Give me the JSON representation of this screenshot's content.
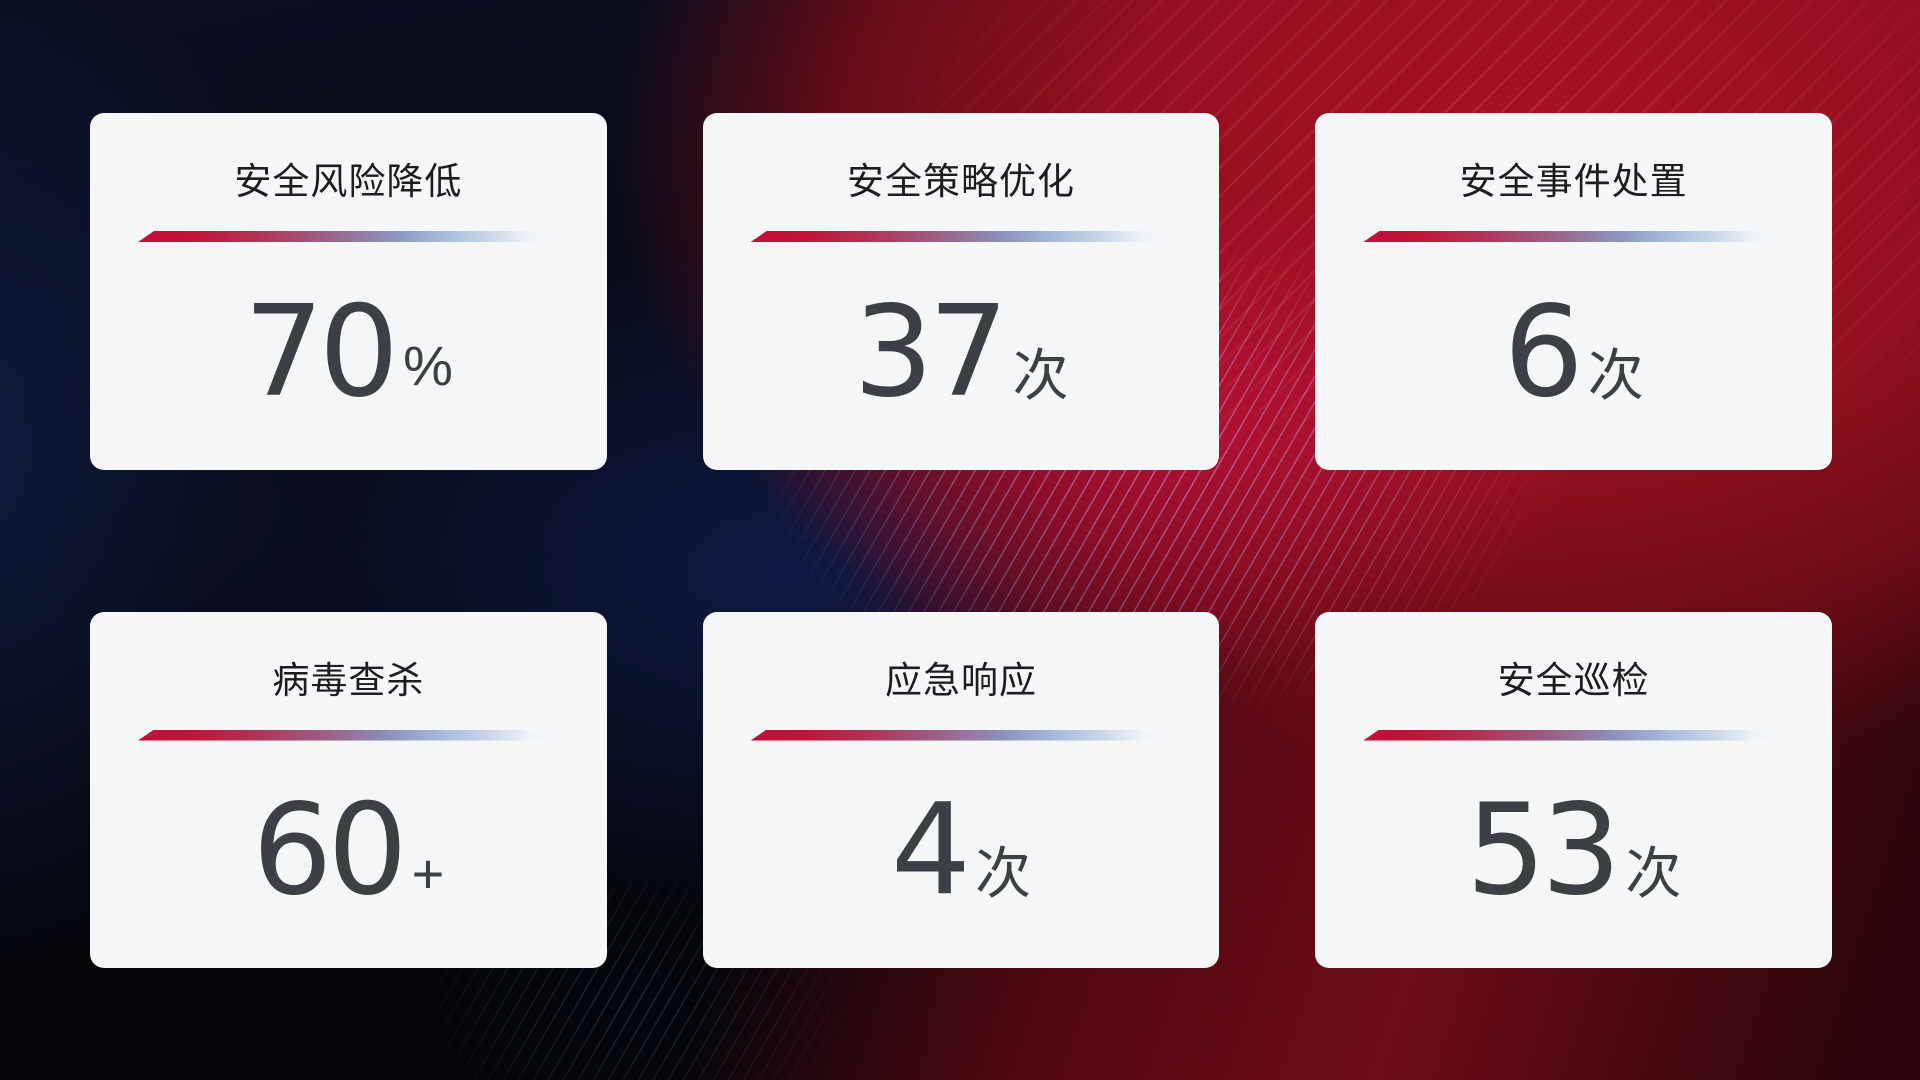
{
  "colors": {
    "card_background": "#f5f6f8",
    "title_text": "#1c1d21",
    "value_text": "#3c3f45",
    "divider_red": "#c41137",
    "divider_blue": "#9fb3d8",
    "background_red": "#a81120",
    "background_navy": "#0a0e1f"
  },
  "cards": [
    {
      "title": "安全风险降低",
      "value": "70",
      "unit": "%"
    },
    {
      "title": "安全策略优化",
      "value": "37",
      "unit": "次"
    },
    {
      "title": "安全事件处置",
      "value": "6",
      "unit": "次"
    },
    {
      "title": "病毒查杀",
      "value": "60",
      "unit": "+"
    },
    {
      "title": "应急响应",
      "value": "4",
      "unit": "次"
    },
    {
      "title": "安全巡检",
      "value": "53",
      "unit": "次"
    }
  ]
}
